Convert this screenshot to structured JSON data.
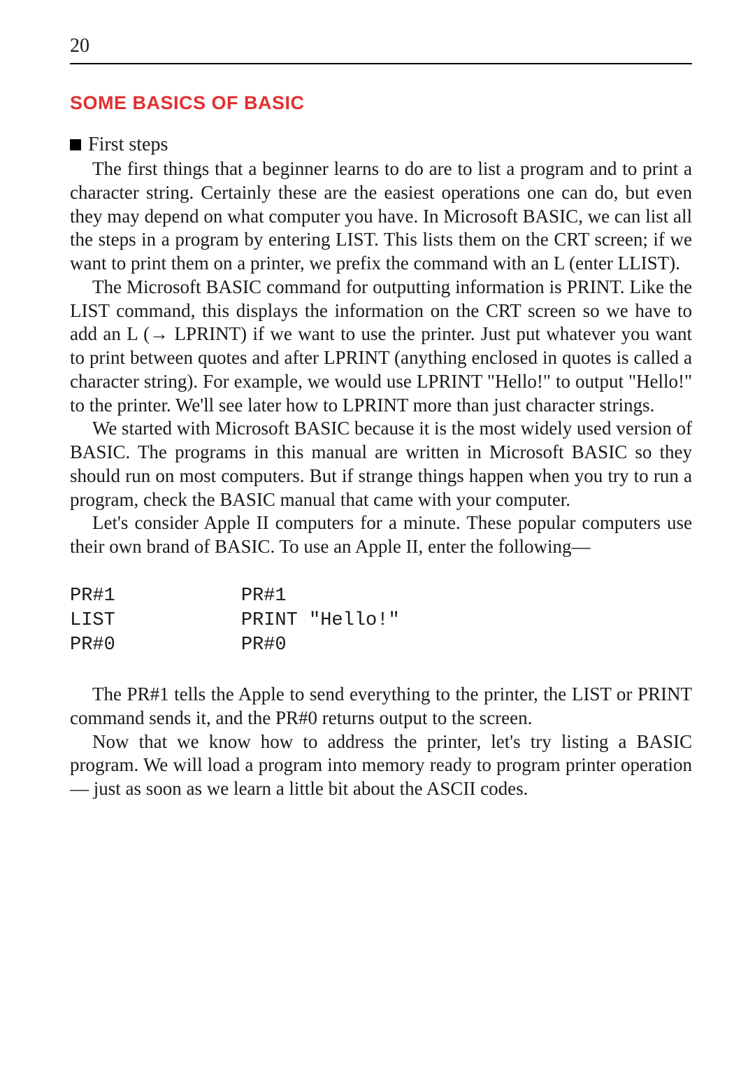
{
  "page_number": "20",
  "section_title": "SOME BASICS OF BASIC",
  "subheading": "First steps",
  "paragraphs": {
    "p1": "The first things that a beginner learns to do are to list a program and to print a character string. Certainly these are the easiest operations one can do, but even they may depend on what computer you have. In Microsoft BASIC, we can list all the steps in a program by entering LIST. This lists them on the CRT screen; if we want to print them on a printer, we prefix the command with an L (enter LLIST).",
    "p2": "The Microsoft BASIC command for outputting information is PRINT. Like the LIST command, this displays the information on the CRT screen so we have to add an L (→ LPRINT) if we want to use the printer. Just put whatever you want to print between quotes and after LPRINT (anything enclosed in quotes is called a character string). For example, we would use LPRINT \"Hello!\" to output \"Hello!\" to the printer. We'll see later how to LPRINT more than just character strings.",
    "p3": "We started with Microsoft BASIC because it is the most widely used version of BASIC. The programs in this manual are written in Microsoft BASIC so they should run on most computers. But if strange things happen when you try to run a program, check the BASIC manual that came with your computer.",
    "p4": "Let's consider Apple II computers for a minute. These popular computers use their own brand of BASIC. To use an Apple II, enter the following—",
    "p5": "The PR#1 tells the Apple to send everything to the printer, the LIST or PRINT command sends it, and the PR#0 returns output to the screen.",
    "p6": "Now that we know how to address the printer, let's try listing a BASIC program. We will load a program into memory ready to program printer operation — just as soon as we learn a little bit about the ASCII codes."
  },
  "code": {
    "left": "PR#1\nLIST\nPR#0",
    "right": "PR#1\nPRINT \"Hello!\"\nPR#0"
  },
  "colors": {
    "title_red": "#e03030",
    "text": "#1a1a1a",
    "background": "#ffffff"
  }
}
